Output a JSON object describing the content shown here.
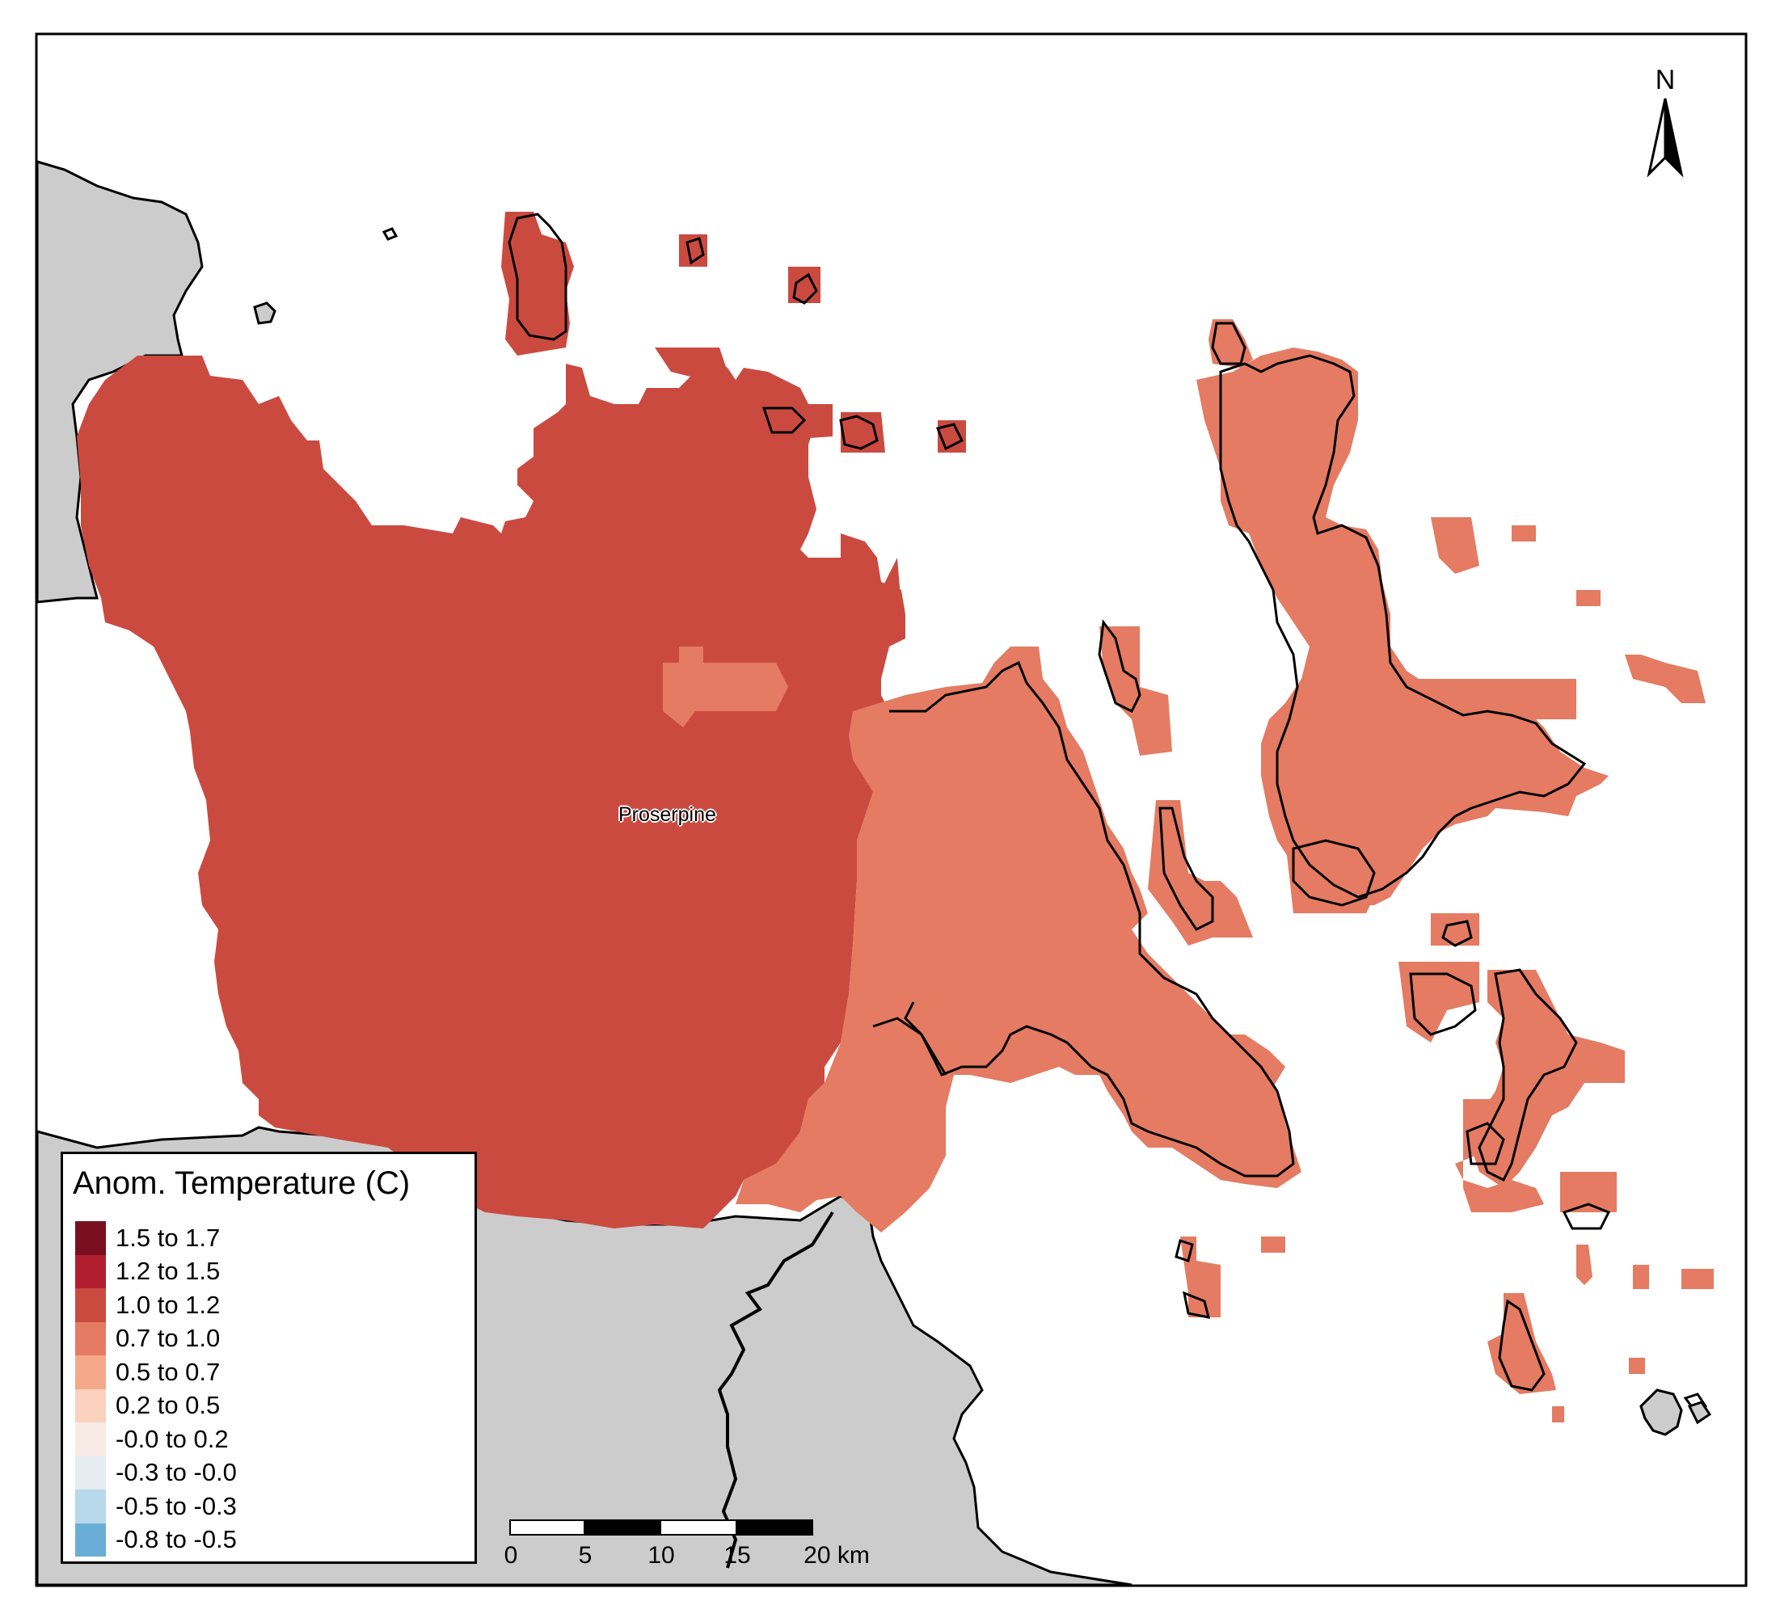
{
  "map": {
    "colors": {
      "land_outside": "#cccccc",
      "sea": "#ffffff",
      "border": "#000000",
      "class_1_0_to_1_2": "#cb4a40",
      "class_0_7_to_1_0": "#e47b62"
    }
  },
  "legend": {
    "title": "Anom. Temperature (C)",
    "items": [
      {
        "label": "1.5 to 1.7",
        "color": "#7a0f20"
      },
      {
        "label": "1.2 to 1.5",
        "color": "#b11e2f"
      },
      {
        "label": "1.0 to 1.2",
        "color": "#cb4a40"
      },
      {
        "label": "0.7 to 1.0",
        "color": "#e47b62"
      },
      {
        "label": "0.5 to 0.7",
        "color": "#f4a98a"
      },
      {
        "label": "0.2 to 0.5",
        "color": "#fbd2bd"
      },
      {
        "label": "-0.0 to 0.2",
        "color": "#f8eae5"
      },
      {
        "label": "-0.3 to -0.0",
        "color": "#e6ecf1"
      },
      {
        "label": "-0.5 to -0.3",
        "color": "#b8d9ea"
      },
      {
        "label": "-0.8 to -0.5",
        "color": "#6aaed6"
      }
    ]
  },
  "place_label": "Proserpine",
  "north_arrow": {
    "letter": "N"
  },
  "scale_bar": {
    "ticks": [
      "0",
      "5",
      "10",
      "15",
      "20 km"
    ]
  }
}
